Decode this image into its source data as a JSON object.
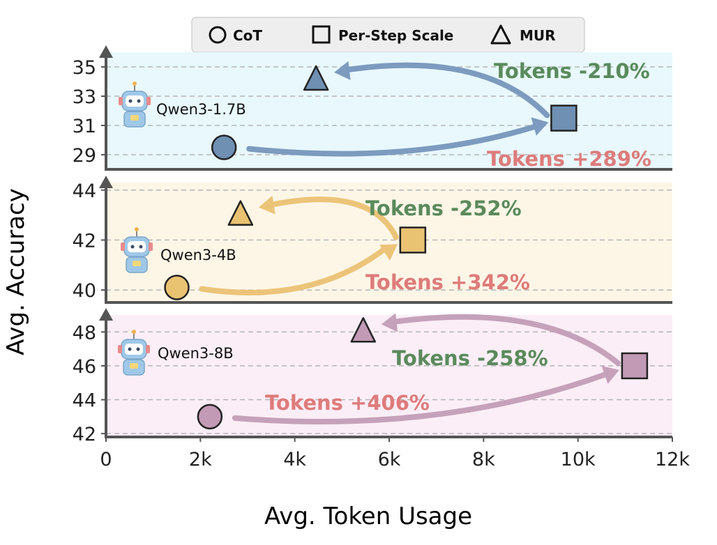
{
  "chart_data": {
    "type": "scatter",
    "xlabel": "Avg. Token Usage",
    "ylabel": "Avg. Accuracy",
    "xlim": [
      0,
      12000
    ],
    "x_ticks": [
      "0",
      "2k",
      "4k",
      "6k",
      "8k",
      "10k",
      "12k"
    ],
    "legend": {
      "location": "top-center",
      "entries": [
        {
          "marker": "circle",
          "label": "CoT"
        },
        {
          "marker": "square",
          "label": "Per-Step Scale"
        },
        {
          "marker": "triangle",
          "label": "MUR"
        }
      ]
    },
    "panels": [
      {
        "model": "Qwen3-1.7B",
        "bg_color": "#e8f8fd",
        "marker_color": "#6f8fb3",
        "arrow_color": "#7d9bbf",
        "ylim": [
          28,
          36
        ],
        "y_ticks": [
          29,
          31,
          33,
          35
        ],
        "points": {
          "cot": {
            "x": 2500,
            "y": 29.5
          },
          "per_step": {
            "x": 9700,
            "y": 31.5
          },
          "mur": {
            "x": 4450,
            "y": 34.1
          }
        },
        "annotations": {
          "decrease": "Tokens -210%",
          "increase": "Tokens +289%"
        }
      },
      {
        "model": "Qwen3-4B",
        "bg_color": "#fdf6e6",
        "marker_color": "#e9c272",
        "arrow_color": "#ecc479",
        "ylim": [
          39.5,
          44.3
        ],
        "y_ticks": [
          40,
          42,
          44
        ],
        "points": {
          "cot": {
            "x": 1500,
            "y": 40.1
          },
          "per_step": {
            "x": 6500,
            "y": 42.0
          },
          "mur": {
            "x": 2850,
            "y": 43.0
          }
        },
        "annotations": {
          "decrease": "Tokens -252%",
          "increase": "Tokens +342%"
        }
      },
      {
        "model": "Qwen3-8B",
        "bg_color": "#fbeef7",
        "marker_color": "#c29ab5",
        "arrow_color": "#c6a1ba",
        "ylim": [
          41.8,
          49.0
        ],
        "y_ticks": [
          42,
          44,
          46,
          48
        ],
        "points": {
          "cot": {
            "x": 2200,
            "y": 43.0
          },
          "per_step": {
            "x": 11200,
            "y": 46.0
          },
          "mur": {
            "x": 5450,
            "y": 48.0
          }
        },
        "annotations": {
          "decrease": "Tokens -258%",
          "increase": "Tokens +406%"
        }
      }
    ]
  },
  "style": {
    "decrease_color": "#5a8a5c",
    "increase_color": "#de7b7b",
    "axis_color": "#555555",
    "grid_color": "#b5b5b5"
  }
}
